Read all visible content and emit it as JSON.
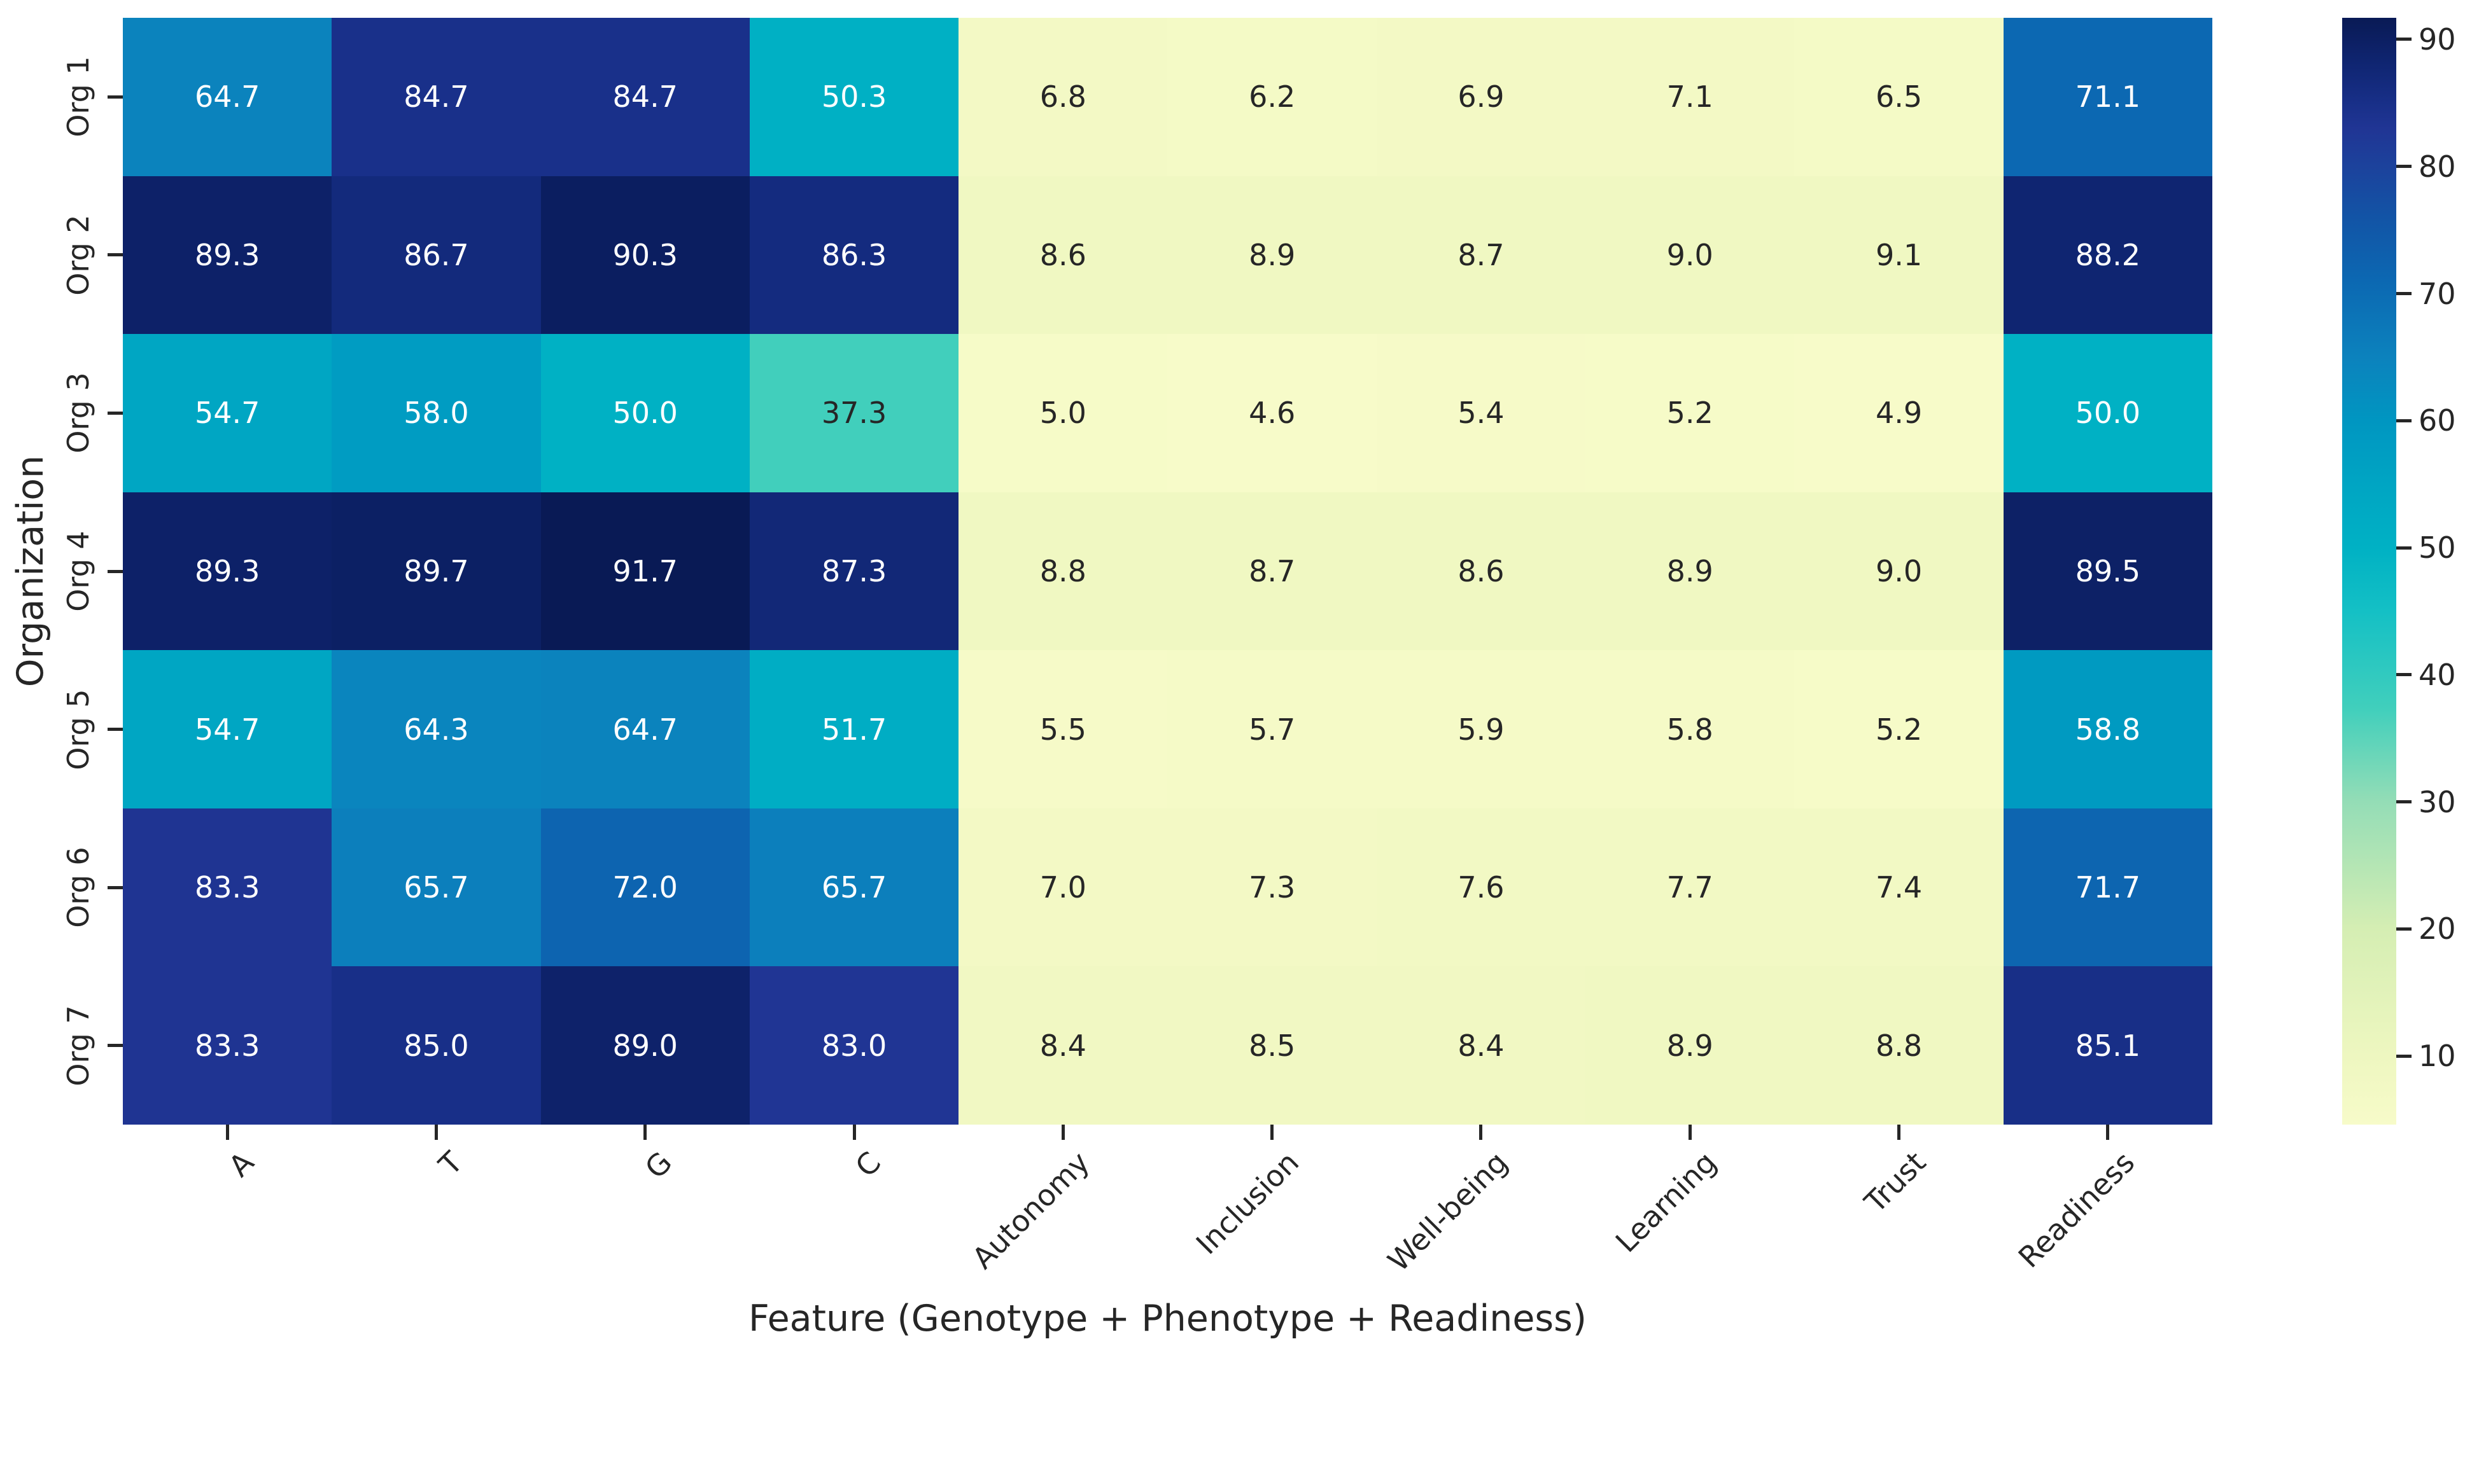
{
  "figure": {
    "background": "#ffffff",
    "annot_color_light": "#ffffff",
    "annot_color_dark": "#262626",
    "tick_color": "#262626"
  },
  "chart_data": {
    "type": "heatmap",
    "xlabel": "Feature (Genotype + Phenotype + Readiness)",
    "ylabel": "Organization",
    "x_categories": [
      "A",
      "T",
      "G",
      "C",
      "Autonomy",
      "Inclusion",
      "Well-being",
      "Learning",
      "Trust",
      "Readiness"
    ],
    "y_categories": [
      "Org 1",
      "Org 2",
      "Org 3",
      "Org 4",
      "Org 5",
      "Org 6",
      "Org 7"
    ],
    "values": [
      [
        64.7,
        84.7,
        84.7,
        50.3,
        6.8,
        6.2,
        6.9,
        7.1,
        6.5,
        71.1
      ],
      [
        89.3,
        86.7,
        90.3,
        86.3,
        8.6,
        8.9,
        8.7,
        9.0,
        9.1,
        88.2
      ],
      [
        54.7,
        58.0,
        50.0,
        37.3,
        5.0,
        4.6,
        5.4,
        5.2,
        4.9,
        50.0
      ],
      [
        89.3,
        89.7,
        91.7,
        87.3,
        8.8,
        8.7,
        8.6,
        8.9,
        9.0,
        89.5
      ],
      [
        54.7,
        64.3,
        64.7,
        51.7,
        5.5,
        5.7,
        5.9,
        5.8,
        5.2,
        58.8
      ],
      [
        83.3,
        65.7,
        72.0,
        65.7,
        7.0,
        7.3,
        7.6,
        7.7,
        7.4,
        71.7
      ],
      [
        83.3,
        85.0,
        89.0,
        83.0,
        8.4,
        8.5,
        8.4,
        8.9,
        8.8,
        85.1
      ]
    ],
    "value_decimals": 1,
    "colormap": "YlGnBu",
    "vmin": 4.6,
    "vmax": 91.7,
    "grid": false,
    "legend_position": "right-colorbar",
    "colorbar_ticks": [
      90,
      80,
      70,
      60,
      50,
      40,
      30,
      20,
      10
    ],
    "colormap_anchors": [
      {
        "v": 4.6,
        "c": "#f7fbc9"
      },
      {
        "v": 10,
        "c": "#eef7c0"
      },
      {
        "v": 20,
        "c": "#d5eeb3"
      },
      {
        "v": 30,
        "c": "#94ddb6"
      },
      {
        "v": 37.3,
        "c": "#41cfbc"
      },
      {
        "v": 45,
        "c": "#14c0c5"
      },
      {
        "v": 50,
        "c": "#00b1c4"
      },
      {
        "v": 55,
        "c": "#00a5c3"
      },
      {
        "v": 60,
        "c": "#0096c1"
      },
      {
        "v": 65,
        "c": "#0c82bd"
      },
      {
        "v": 71,
        "c": "#0c68b2"
      },
      {
        "v": 76,
        "c": "#1254a6"
      },
      {
        "v": 80,
        "c": "#1c429c"
      },
      {
        "v": 83,
        "c": "#203594"
      },
      {
        "v": 85,
        "c": "#182f88"
      },
      {
        "v": 88.2,
        "c": "#0f2571"
      },
      {
        "v": 90,
        "c": "#0c1f62"
      },
      {
        "v": 91.7,
        "c": "#091a55"
      }
    ]
  }
}
